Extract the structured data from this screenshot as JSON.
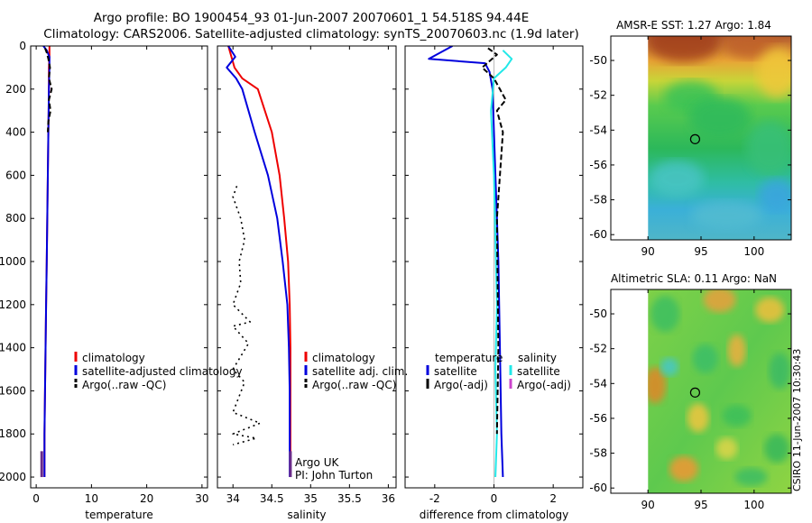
{
  "header": {
    "line1": "Argo profile: BO 1900454_93 01-Jun-2007 20070601_1 54.518S 94.44E",
    "line2": "Climatology: CARS2006. Satellite-adjusted climatology: synTS_20070603.nc (1.9d later)"
  },
  "stamp": "CSIRO 11-Jun-2007 10:30:43",
  "colors": {
    "climatology": "#ee0000",
    "satellite": "#0000dd",
    "argo": "#000000",
    "salinity_sat": "#22e8e8",
    "salinity_argo": "#cc44cc",
    "marker": "#6a2b8a"
  },
  "chart_data": [
    {
      "type": "line",
      "id": "temperature",
      "xlabel": "temperature",
      "xlim": [
        -1,
        31
      ],
      "ylim": [
        2050,
        0
      ],
      "xticks": [
        0,
        10,
        20,
        30
      ],
      "xtick_labels": [
        "0",
        "10",
        "20",
        "30"
      ],
      "yticks": [
        0,
        200,
        400,
        600,
        800,
        1000,
        1200,
        1400,
        1600,
        1800,
        2000
      ],
      "ytick_labels": [
        "0",
        "200",
        "400",
        "600",
        "800",
        "1000",
        "1200",
        "1400",
        "1600",
        "1800",
        "2000"
      ],
      "series": [
        {
          "name": "climatology",
          "color": "#ee0000",
          "style": "solid",
          "x": [
            2.4,
            2.4,
            2.3,
            2.3,
            2.2,
            2.1,
            2.0,
            1.9,
            1.8,
            1.7,
            1.6,
            1.5,
            1.5
          ],
          "y": [
            0,
            50,
            100,
            200,
            400,
            600,
            800,
            1000,
            1200,
            1400,
            1600,
            1800,
            2000
          ]
        },
        {
          "name": "satellite-adjusted climatology",
          "color": "#0000dd",
          "style": "solid",
          "x": [
            1.3,
            1.9,
            2.4,
            2.4,
            2.3,
            2.2,
            2.1,
            2.0,
            1.9,
            1.8,
            1.7,
            1.6,
            1.5,
            1.5
          ],
          "y": [
            0,
            20,
            50,
            100,
            200,
            400,
            600,
            800,
            1000,
            1200,
            1400,
            1600,
            1800,
            2000
          ]
        },
        {
          "name": "Argo(..raw -QC)",
          "color": "#000000",
          "style": "dashed",
          "x": [
            1.6,
            1.9,
            2.2,
            2.5,
            2.3,
            2.8,
            2.3,
            2.6,
            2.2,
            2.1
          ],
          "y": [
            10,
            30,
            60,
            100,
            150,
            200,
            250,
            300,
            350,
            400
          ]
        }
      ],
      "marker": {
        "x": 1.0,
        "y_from": 1880,
        "y_to": 2000
      },
      "legend": [
        "climatology",
        "satellite-adjusted climatology",
        "Argo(..raw -QC)"
      ]
    },
    {
      "type": "line",
      "id": "salinity",
      "xlabel": "salinity",
      "xlim": [
        33.8,
        36.1
      ],
      "ylim": [
        2050,
        0
      ],
      "xticks": [
        34,
        34.5,
        35,
        35.5,
        36
      ],
      "xtick_labels": [
        "34",
        "34.5",
        "35",
        "35.5",
        "36"
      ],
      "series": [
        {
          "name": "climatology",
          "color": "#ee0000",
          "style": "solid",
          "x": [
            33.94,
            34.02,
            34.12,
            34.32,
            34.5,
            34.6,
            34.66,
            34.71,
            34.73,
            34.74,
            34.74,
            34.74,
            34.74
          ],
          "y": [
            0,
            100,
            150,
            200,
            400,
            600,
            800,
            1000,
            1200,
            1400,
            1600,
            1800,
            2000
          ]
        },
        {
          "name": "satellite adj. clim.",
          "color": "#0000dd",
          "style": "solid",
          "x": [
            33.94,
            34.03,
            33.92,
            34.04,
            34.12,
            34.28,
            34.45,
            34.57,
            34.64,
            34.7,
            34.72,
            34.73,
            34.73,
            34.73
          ],
          "y": [
            0,
            50,
            100,
            150,
            200,
            400,
            600,
            800,
            1000,
            1200,
            1400,
            1600,
            1800,
            2000
          ]
        },
        {
          "name": "Argo(..raw -QC)",
          "color": "#000000",
          "style": "dotted",
          "x": [
            34.05,
            34.0,
            34.1,
            34.15,
            34.08,
            34.1,
            34.0,
            34.22,
            34.0,
            34.2,
            34.0,
            34.15,
            34.0,
            34.35,
            34.0,
            34.3,
            34.0
          ],
          "y": [
            650,
            700,
            800,
            900,
            1000,
            1100,
            1200,
            1280,
            1300,
            1380,
            1500,
            1560,
            1700,
            1750,
            1800,
            1820,
            1850
          ]
        }
      ],
      "marker": {
        "x": 34.74,
        "y_from": 1880,
        "y_to": 2000
      },
      "legend": [
        "climatology",
        "satellite adj. clim.",
        "Argo(..raw -QC)"
      ],
      "annotation": [
        "Argo UK",
        "PI: John Turton"
      ]
    },
    {
      "type": "line",
      "id": "difference",
      "xlabel": "difference from climatology",
      "xlim": [
        -3,
        3
      ],
      "ylim": [
        2050,
        0
      ],
      "xticks": [
        -2,
        0,
        2
      ],
      "xtick_labels": [
        "-2",
        "0",
        "2"
      ],
      "series": [
        {
          "name": "satellite",
          "group": "temperature",
          "color": "#0000dd",
          "style": "solid",
          "x": [
            -1.4,
            -2.2,
            -0.3,
            -0.15,
            -0.05,
            0.0,
            0.05,
            0.1,
            0.15,
            0.2,
            0.25,
            0.3
          ],
          "y": [
            0,
            60,
            80,
            120,
            200,
            400,
            600,
            800,
            1000,
            1400,
            1800,
            2000
          ]
        },
        {
          "name": "satellite",
          "group": "salinity",
          "color": "#22e8e8",
          "style": "solid",
          "x": [
            0.3,
            0.6,
            0.4,
            0.0,
            -0.1,
            0.0,
            0.05,
            0.1,
            0.05,
            0.1,
            0.05
          ],
          "y": [
            20,
            60,
            100,
            150,
            300,
            600,
            900,
            1200,
            1500,
            1800,
            2000
          ]
        },
        {
          "name": "Argo(-adj)",
          "group": "temperature",
          "color": "#000000",
          "style": "dashed",
          "x": [
            -0.2,
            0.1,
            -0.4,
            0.0,
            0.4,
            0.1,
            0.3,
            0.1,
            0.15,
            0.1
          ],
          "y": [
            10,
            40,
            100,
            150,
            250,
            300,
            400,
            800,
            1400,
            1800
          ]
        }
      ],
      "legend_groups": [
        {
          "title": "temperature",
          "items": [
            "satellite",
            "Argo(-adj)"
          ]
        },
        {
          "title": "salinity",
          "items": [
            "satellite",
            "Argo(-adj)"
          ]
        }
      ]
    },
    {
      "type": "heatmap",
      "id": "sst-map",
      "title": "AMSR-E SST: 1.27 Argo: 1.84",
      "xlim": [
        86.5,
        103.5
      ],
      "ylim": [
        -60.3,
        -48.6
      ],
      "xticks": [
        90,
        95,
        100
      ],
      "xtick_labels": [
        "90",
        "95",
        "100"
      ],
      "yticks": [
        -50,
        -52,
        -54,
        -56,
        -58,
        -60
      ],
      "ytick_labels": [
        "-50",
        "-52",
        "-54",
        "-56",
        "-58",
        "-60"
      ],
      "data_extent": {
        "lon": [
          90,
          103.5
        ],
        "lat": [
          -60.3,
          -48.6
        ]
      },
      "marker": {
        "lon": 94.44,
        "lat": -54.52
      }
    },
    {
      "type": "heatmap",
      "id": "sla-map",
      "title": "Altimetric SLA: 0.11 Argo: NaN",
      "xlim": [
        86.5,
        103.5
      ],
      "ylim": [
        -60.3,
        -48.6
      ],
      "xticks": [
        90,
        95,
        100
      ],
      "xtick_labels": [
        "90",
        "95",
        "100"
      ],
      "yticks": [
        -50,
        -52,
        -54,
        -56,
        -58,
        -60
      ],
      "ytick_labels": [
        "-50",
        "-52",
        "-54",
        "-56",
        "-58",
        "-60"
      ],
      "data_extent": {
        "lon": [
          90,
          103.5
        ],
        "lat": [
          -60.3,
          -48.6
        ]
      },
      "marker": {
        "lon": 94.44,
        "lat": -54.52
      }
    }
  ]
}
